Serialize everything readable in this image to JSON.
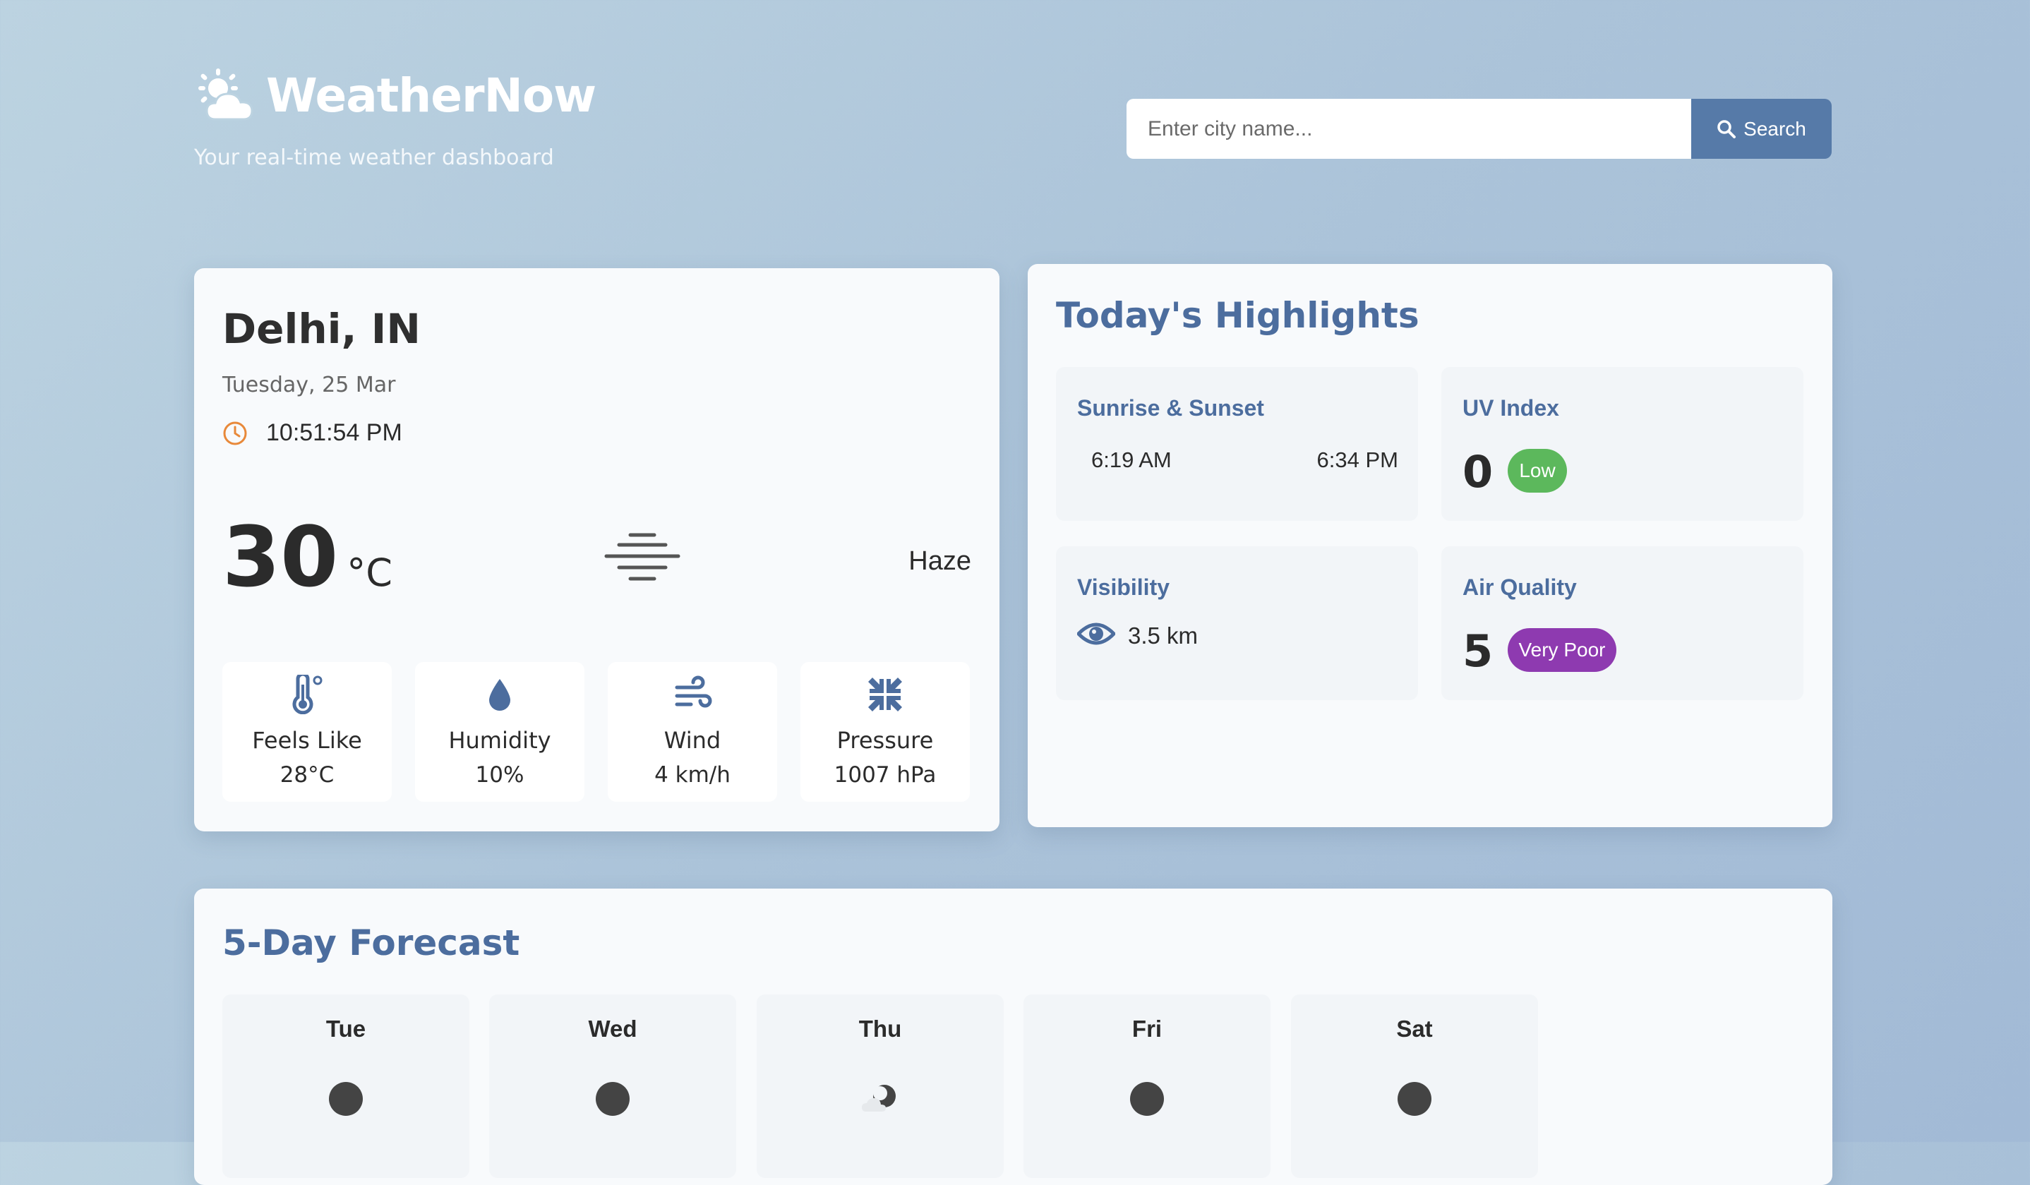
{
  "app": {
    "title": "WeatherNow",
    "tagline": "Your real-time weather dashboard",
    "logo_icon": "sun-cloud-icon"
  },
  "search": {
    "placeholder": "Enter city name...",
    "value": "",
    "button_label": "Search"
  },
  "current": {
    "city": "Delhi, IN",
    "date": "Tuesday, 25 Mar",
    "time": "10:51:54 PM",
    "temperature": "30",
    "unit": "°C",
    "condition": "Haze",
    "condition_icon": "haze-icon",
    "stats": [
      {
        "label": "Feels Like",
        "value": "28°C",
        "icon": "thermometer-icon"
      },
      {
        "label": "Humidity",
        "value": "10%",
        "icon": "droplet-icon"
      },
      {
        "label": "Wind",
        "value": "4 km/h",
        "icon": "wind-icon"
      },
      {
        "label": "Pressure",
        "value": "1007 hPa",
        "icon": "compress-icon"
      }
    ]
  },
  "highlights": {
    "title": "Today's Highlights",
    "sun": {
      "title": "Sunrise & Sunset",
      "sunrise": "6:19 AM",
      "sunset": "6:34 PM"
    },
    "uv": {
      "title": "UV Index",
      "value": "0",
      "level": "Low",
      "color": "#5cb85c"
    },
    "visibility": {
      "title": "Visibility",
      "value": "3.5 km"
    },
    "air": {
      "title": "Air Quality",
      "value": "5",
      "level": "Very Poor",
      "color": "#8e3ab0"
    }
  },
  "forecast": {
    "title": "5-Day Forecast",
    "days": [
      {
        "day": "Tue",
        "icon": "dark-circle-icon"
      },
      {
        "day": "Wed",
        "icon": "dark-circle-icon"
      },
      {
        "day": "Thu",
        "icon": "moon-cloud-icon"
      },
      {
        "day": "Fri",
        "icon": "dark-circle-icon"
      },
      {
        "day": "Sat",
        "icon": "dark-circle-icon"
      }
    ]
  },
  "colors": {
    "accent": "#4c6d9e",
    "button": "#567aa8",
    "clock": "#e8893a"
  }
}
